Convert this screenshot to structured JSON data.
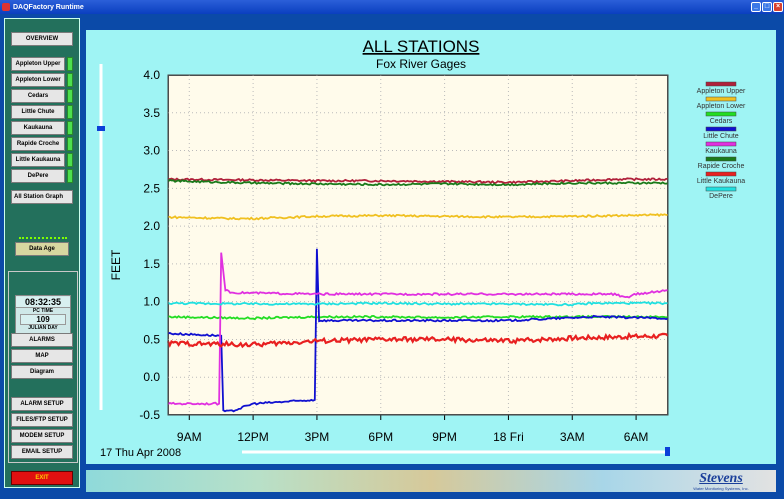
{
  "window": {
    "title": "DAQFactory Runtime"
  },
  "nav": {
    "overview": "OVERVIEW",
    "stations": [
      "Appleton Upper",
      "Appleton Lower",
      "Cedars",
      "Little Chute",
      "Kaukauna",
      "Rapide Croche",
      "Little Kaukauna",
      "DePere"
    ],
    "all_station_graph": "All Station Graph",
    "data_age": "Data Age",
    "clock": {
      "time": "08:32:35",
      "time_label": "PC TIME",
      "julian": "109",
      "julian_label": "JULIAN DAY"
    },
    "group1": [
      "ALARMS",
      "MAP",
      "Diagram"
    ],
    "group2": [
      "ALARM SETUP",
      "FILES/FTP SETUP",
      "MODEM SETUP",
      "EMAIL SETUP"
    ],
    "exit": "EXIT"
  },
  "footer": {
    "logo": "Stevens",
    "logo_sub": "Water Monitoring Systems, Inc."
  },
  "chart_data": {
    "type": "line",
    "title": "ALL STATIONS",
    "subtitle": "Fox River Gages",
    "ylabel": "FEET",
    "ylim": [
      -0.5,
      4.0
    ],
    "yticks": [
      "4.0",
      "3.5",
      "3.0",
      "2.5",
      "2.0",
      "1.5",
      "1.0",
      "0.5",
      "0.0",
      "-0.5"
    ],
    "xticks": [
      "9AM",
      "12PM",
      "3PM",
      "6PM",
      "9PM",
      "18 Fri",
      "3AM",
      "6AM"
    ],
    "date_label": "17 Thu Apr 2008",
    "x_range_hours": [
      8,
      31.5
    ],
    "grid": true,
    "legend_position": "right",
    "series": [
      {
        "name": "Appleton Upper",
        "color": "#b0203a",
        "x": [
          8,
          12,
          15,
          18,
          21,
          24,
          27,
          29,
          31.5
        ],
        "values": [
          2.62,
          2.61,
          2.6,
          2.6,
          2.59,
          2.58,
          2.6,
          2.62,
          2.62
        ]
      },
      {
        "name": "Appleton Lower",
        "color": "#f0c020",
        "x": [
          8,
          11,
          12,
          15,
          18,
          21,
          24,
          27,
          31.5
        ],
        "values": [
          2.12,
          2.1,
          2.1,
          2.13,
          2.14,
          2.13,
          2.12,
          2.13,
          2.15
        ]
      },
      {
        "name": "Cedars",
        "color": "#22dd22",
        "x": [
          8,
          12,
          15,
          18,
          21,
          24,
          27,
          31.5
        ],
        "values": [
          0.8,
          0.78,
          0.8,
          0.8,
          0.79,
          0.8,
          0.8,
          0.8
        ]
      },
      {
        "name": "Little Chute",
        "color": "#1010d0",
        "x": [
          8,
          10.5,
          10.6,
          11,
          12,
          14.9,
          15,
          15.1,
          18,
          24,
          28,
          31.5
        ],
        "values": [
          0.58,
          0.55,
          -0.45,
          -0.45,
          -0.35,
          -0.3,
          1.7,
          0.75,
          0.75,
          0.75,
          0.8,
          0.78
        ]
      },
      {
        "name": "Kaukauna",
        "color": "#e030e0",
        "x": [
          8,
          10.4,
          10.5,
          10.7,
          11,
          15,
          24,
          28,
          29,
          29.5,
          30,
          31.5
        ],
        "values": [
          -0.35,
          -0.35,
          1.65,
          1.15,
          1.12,
          1.1,
          1.1,
          1.1,
          1.1,
          1.05,
          1.1,
          1.15
        ]
      },
      {
        "name": "Rapide Croche",
        "color": "#1a7a1a",
        "x": [
          8,
          12,
          15,
          18,
          21,
          24,
          27,
          31.5
        ],
        "values": [
          2.6,
          2.57,
          2.56,
          2.55,
          2.56,
          2.55,
          2.57,
          2.57
        ]
      },
      {
        "name": "Little Kaukauna",
        "color": "#e82020",
        "x": [
          8,
          12,
          15,
          18,
          21,
          24,
          27,
          31.5
        ],
        "values": [
          0.45,
          0.43,
          0.48,
          0.5,
          0.5,
          0.48,
          0.52,
          0.55
        ]
      },
      {
        "name": "DePere",
        "color": "#20e0e0",
        "x": [
          8,
          12,
          15,
          18,
          21,
          24,
          27,
          28,
          31.5
        ],
        "values": [
          0.98,
          0.97,
          0.97,
          0.98,
          0.97,
          0.97,
          0.96,
          0.98,
          0.98
        ]
      }
    ]
  }
}
